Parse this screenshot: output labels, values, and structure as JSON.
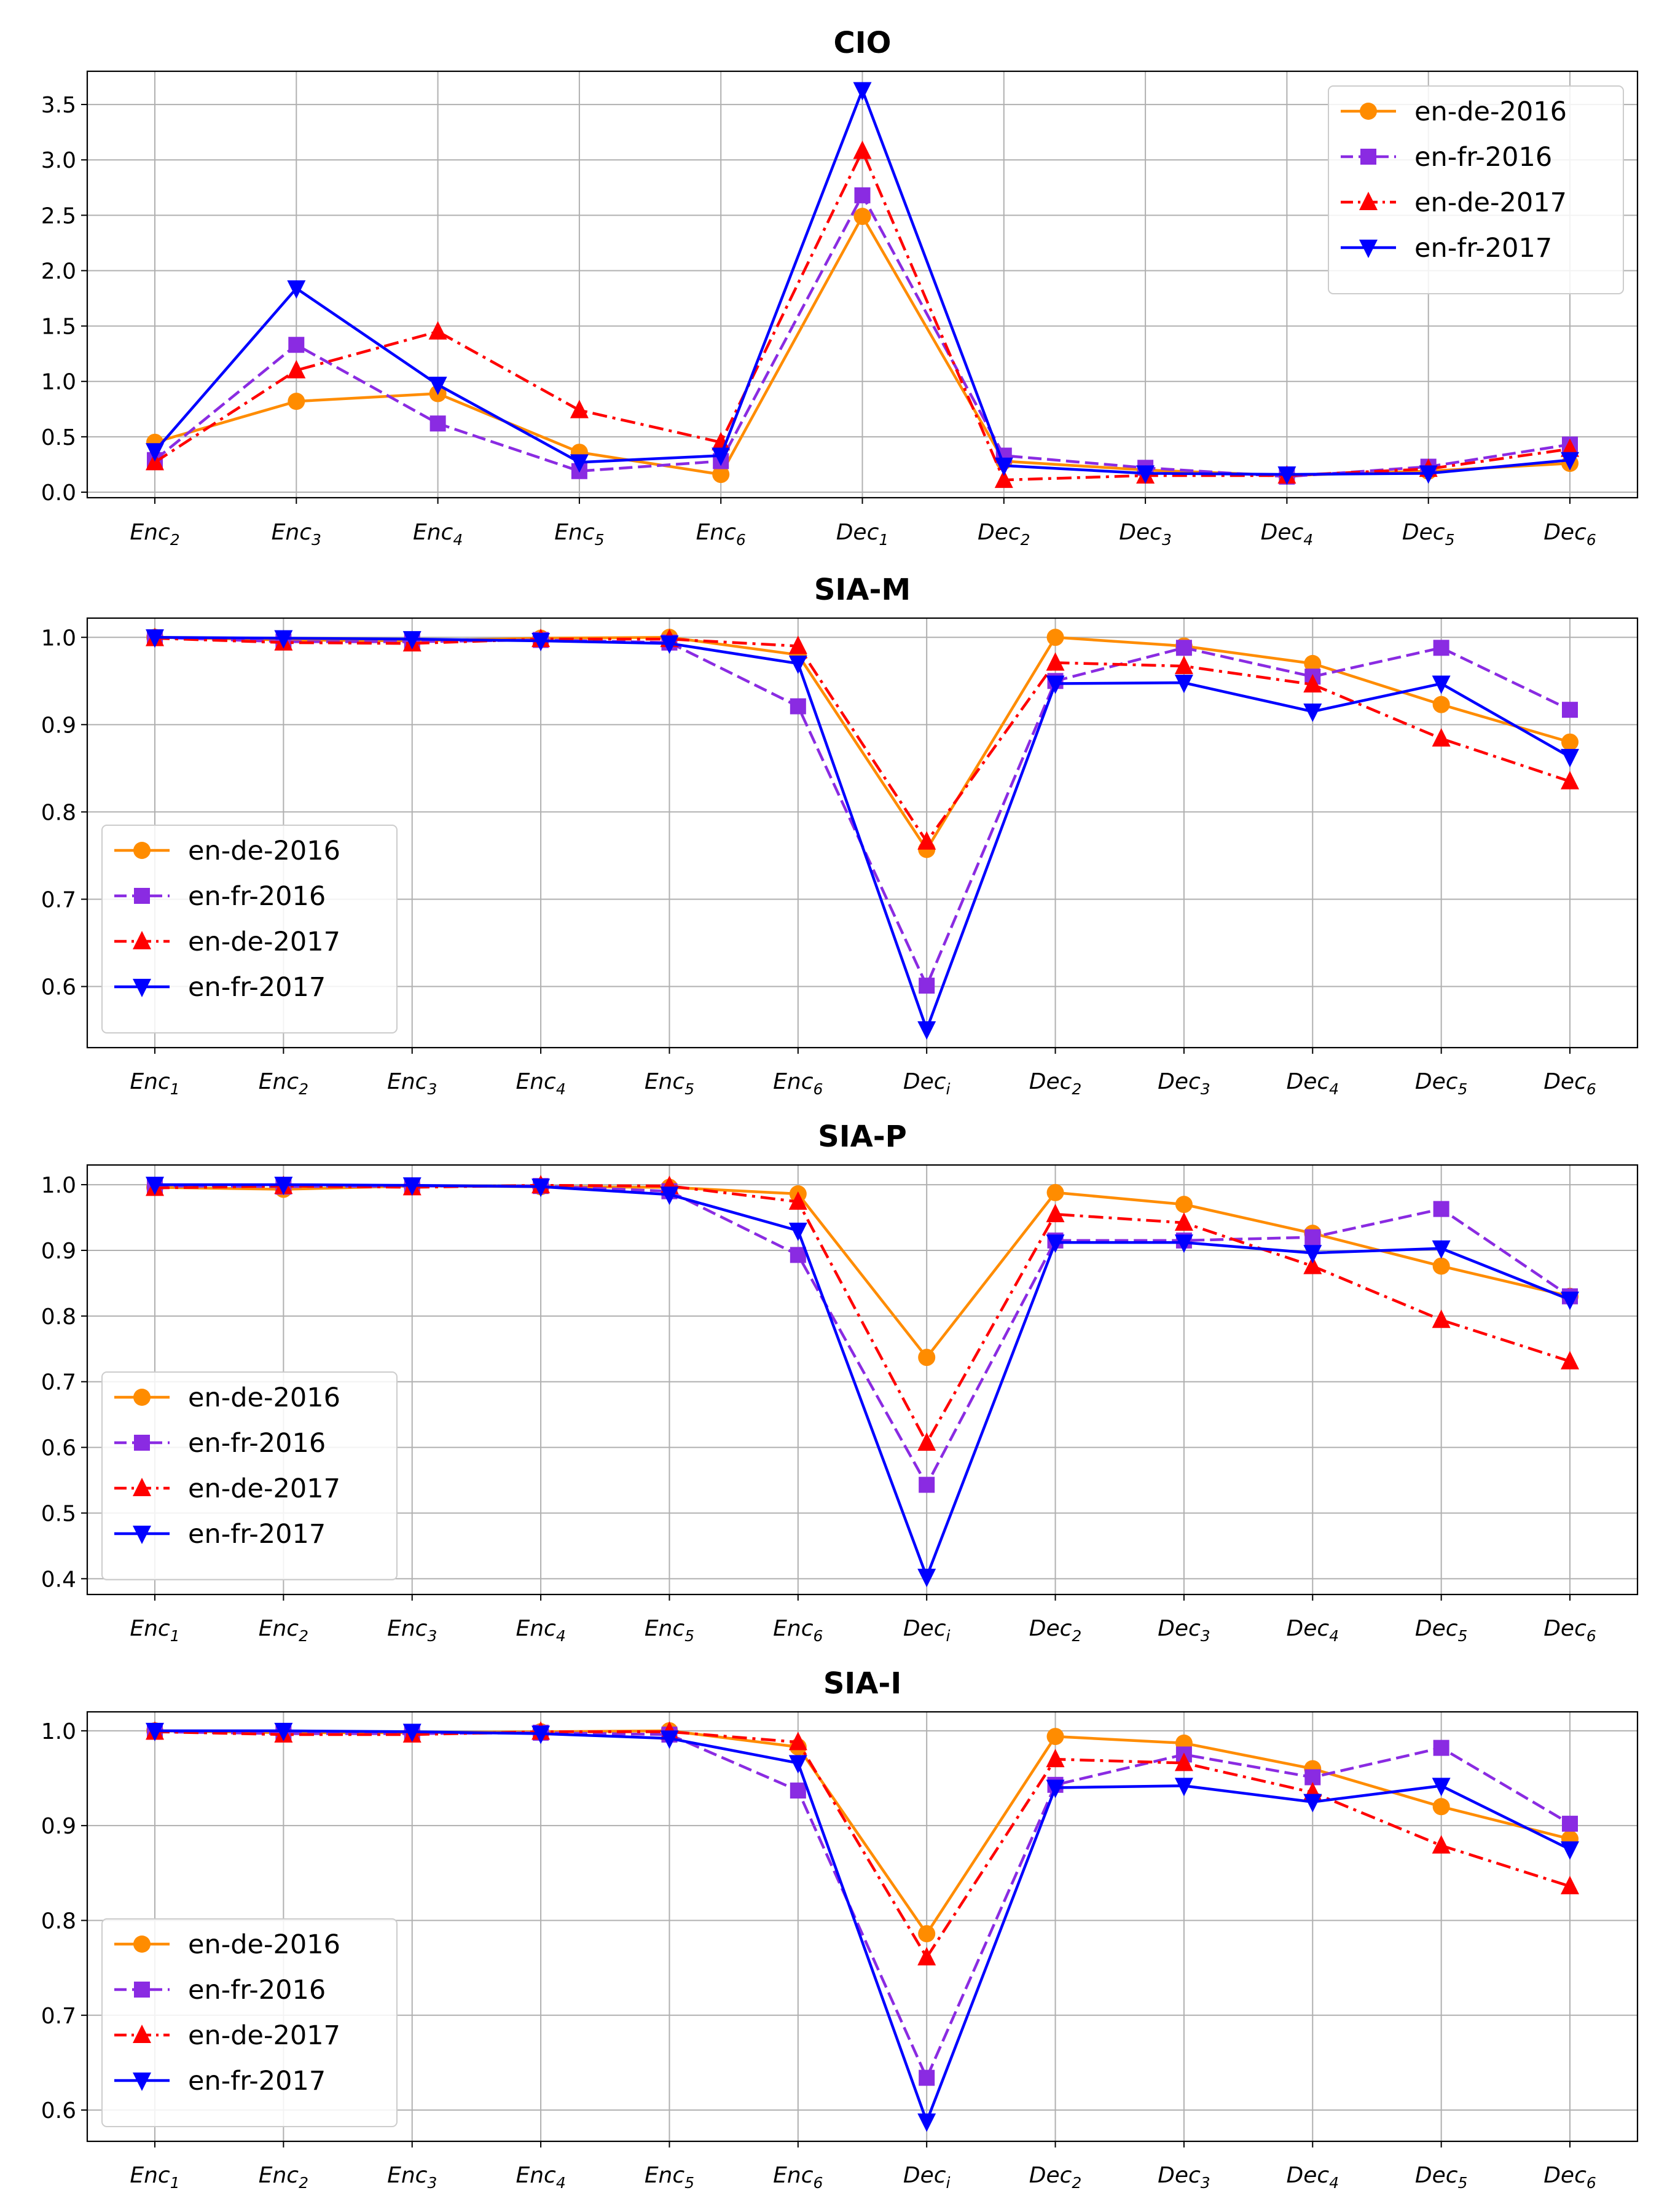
{
  "colors": {
    "en-de-2016": "#ff8c00",
    "en-fr-2016": "#8a2be2",
    "en-de-2017": "#ff0000",
    "en-fr-2017": "#0000ff"
  },
  "chart_data": [
    {
      "type": "line",
      "title": "CIO",
      "xlabel": "",
      "ylabel": "",
      "categories": [
        {
          "base": "Enc",
          "sub": "2"
        },
        {
          "base": "Enc",
          "sub": "3"
        },
        {
          "base": "Enc",
          "sub": "4"
        },
        {
          "base": "Enc",
          "sub": "5"
        },
        {
          "base": "Enc",
          "sub": "6"
        },
        {
          "base": "Dec",
          "sub": "1"
        },
        {
          "base": "Dec",
          "sub": "2"
        },
        {
          "base": "Dec",
          "sub": "3"
        },
        {
          "base": "Dec",
          "sub": "4"
        },
        {
          "base": "Dec",
          "sub": "5"
        },
        {
          "base": "Dec",
          "sub": "6"
        }
      ],
      "ylim": [
        -0.05,
        3.8
      ],
      "yticks": [
        "0.0",
        "0.5",
        "1.0",
        "1.5",
        "2.0",
        "2.5",
        "3.0",
        "3.5"
      ],
      "grid": true,
      "legend_position": "upper-right",
      "series": [
        {
          "name": "en-de-2016",
          "values": [
            0.45,
            0.82,
            0.89,
            0.36,
            0.16,
            2.49,
            0.28,
            0.2,
            0.15,
            0.19,
            0.26
          ]
        },
        {
          "name": "en-fr-2016",
          "values": [
            0.29,
            1.33,
            0.62,
            0.19,
            0.28,
            2.68,
            0.33,
            0.22,
            0.14,
            0.23,
            0.43
          ]
        },
        {
          "name": "en-de-2017",
          "values": [
            0.27,
            1.1,
            1.45,
            0.74,
            0.45,
            3.08,
            0.11,
            0.15,
            0.15,
            0.21,
            0.39
          ]
        },
        {
          "name": "en-fr-2017",
          "values": [
            0.37,
            1.84,
            0.97,
            0.27,
            0.33,
            3.63,
            0.24,
            0.17,
            0.16,
            0.17,
            0.29
          ]
        }
      ]
    },
    {
      "type": "line",
      "title": "SIA-M",
      "xlabel": "",
      "ylabel": "",
      "categories": [
        {
          "base": "Enc",
          "sub": "1"
        },
        {
          "base": "Enc",
          "sub": "2"
        },
        {
          "base": "Enc",
          "sub": "3"
        },
        {
          "base": "Enc",
          "sub": "4"
        },
        {
          "base": "Enc",
          "sub": "5"
        },
        {
          "base": "Enc",
          "sub": "6"
        },
        {
          "base": "Dec",
          "sub": "i"
        },
        {
          "base": "Dec",
          "sub": "2"
        },
        {
          "base": "Dec",
          "sub": "3"
        },
        {
          "base": "Dec",
          "sub": "4"
        },
        {
          "base": "Dec",
          "sub": "5"
        },
        {
          "base": "Dec",
          "sub": "6"
        }
      ],
      "ylim": [
        0.53,
        1.022
      ],
      "yticks": [
        "0.6",
        "0.7",
        "0.8",
        "0.9",
        "1.0"
      ],
      "grid": true,
      "legend_position": "lower-left",
      "series": [
        {
          "name": "en-de-2016",
          "values": [
            1.0,
            0.997,
            0.996,
            0.999,
            1.0,
            0.98,
            0.757,
            1.0,
            0.99,
            0.97,
            0.923,
            0.88
          ]
        },
        {
          "name": "en-fr-2016",
          "values": [
            1.0,
            0.995,
            0.995,
            0.997,
            0.994,
            0.921,
            0.601,
            0.95,
            0.988,
            0.955,
            0.988,
            0.917
          ]
        },
        {
          "name": "en-de-2017",
          "values": [
            0.999,
            0.994,
            0.993,
            0.998,
            0.998,
            0.99,
            0.766,
            0.971,
            0.967,
            0.946,
            0.884,
            0.835
          ]
        },
        {
          "name": "en-fr-2017",
          "values": [
            1.0,
            0.999,
            0.998,
            0.996,
            0.993,
            0.97,
            0.551,
            0.947,
            0.948,
            0.915,
            0.947,
            0.863
          ]
        }
      ]
    },
    {
      "type": "line",
      "title": "SIA-P",
      "xlabel": "",
      "ylabel": "",
      "categories": [
        {
          "base": "Enc",
          "sub": "1"
        },
        {
          "base": "Enc",
          "sub": "2"
        },
        {
          "base": "Enc",
          "sub": "3"
        },
        {
          "base": "Enc",
          "sub": "4"
        },
        {
          "base": "Enc",
          "sub": "5"
        },
        {
          "base": "Enc",
          "sub": "6"
        },
        {
          "base": "Dec",
          "sub": "i"
        },
        {
          "base": "Dec",
          "sub": "2"
        },
        {
          "base": "Dec",
          "sub": "3"
        },
        {
          "base": "Dec",
          "sub": "4"
        },
        {
          "base": "Dec",
          "sub": "5"
        },
        {
          "base": "Dec",
          "sub": "6"
        }
      ],
      "ylim": [
        0.376,
        1.03
      ],
      "yticks": [
        "0.4",
        "0.5",
        "0.6",
        "0.7",
        "0.8",
        "0.9",
        "1.0"
      ],
      "grid": true,
      "legend_position": "lower-left",
      "series": [
        {
          "name": "en-de-2016",
          "values": [
            0.996,
            0.993,
            0.998,
            0.997,
            0.996,
            0.986,
            0.737,
            0.988,
            0.97,
            0.926,
            0.876,
            0.83
          ]
        },
        {
          "name": "en-fr-2016",
          "values": [
            0.998,
            0.997,
            0.998,
            0.998,
            0.99,
            0.893,
            0.543,
            0.915,
            0.915,
            0.92,
            0.963,
            0.83
          ]
        },
        {
          "name": "en-de-2017",
          "values": [
            0.995,
            0.998,
            0.996,
            0.999,
            0.998,
            0.974,
            0.607,
            0.955,
            0.942,
            0.876,
            0.794,
            0.731
          ]
        },
        {
          "name": "en-fr-2017",
          "values": [
            1.0,
            1.0,
            0.999,
            0.997,
            0.985,
            0.93,
            0.403,
            0.912,
            0.912,
            0.896,
            0.903,
            0.825
          ]
        }
      ]
    },
    {
      "type": "line",
      "title": "SIA-I",
      "xlabel": "",
      "ylabel": "",
      "categories": [
        {
          "base": "Enc",
          "sub": "1"
        },
        {
          "base": "Enc",
          "sub": "2"
        },
        {
          "base": "Enc",
          "sub": "3"
        },
        {
          "base": "Enc",
          "sub": "4"
        },
        {
          "base": "Enc",
          "sub": "5"
        },
        {
          "base": "Enc",
          "sub": "6"
        },
        {
          "base": "Dec",
          "sub": "i"
        },
        {
          "base": "Dec",
          "sub": "2"
        },
        {
          "base": "Dec",
          "sub": "3"
        },
        {
          "base": "Dec",
          "sub": "4"
        },
        {
          "base": "Dec",
          "sub": "5"
        },
        {
          "base": "Dec",
          "sub": "6"
        }
      ],
      "ylim": [
        0.567,
        1.02
      ],
      "yticks": [
        "0.6",
        "0.7",
        "0.8",
        "0.9",
        "1.0"
      ],
      "grid": true,
      "legend_position": "lower-left",
      "series": [
        {
          "name": "en-de-2016",
          "values": [
            1.0,
            0.998,
            0.998,
            0.999,
            1.0,
            0.983,
            0.786,
            0.994,
            0.987,
            0.96,
            0.92,
            0.886
          ]
        },
        {
          "name": "en-fr-2016",
          "values": [
            0.999,
            0.997,
            0.997,
            0.998,
            0.996,
            0.937,
            0.634,
            0.943,
            0.975,
            0.951,
            0.982,
            0.902
          ]
        },
        {
          "name": "en-de-2017",
          "values": [
            0.999,
            0.996,
            0.996,
            0.999,
            0.999,
            0.988,
            0.761,
            0.97,
            0.966,
            0.935,
            0.879,
            0.836
          ]
        },
        {
          "name": "en-fr-2017",
          "values": [
            1.0,
            1.0,
            0.999,
            0.997,
            0.992,
            0.966,
            0.588,
            0.94,
            0.942,
            0.925,
            0.942,
            0.875
          ]
        }
      ]
    }
  ]
}
